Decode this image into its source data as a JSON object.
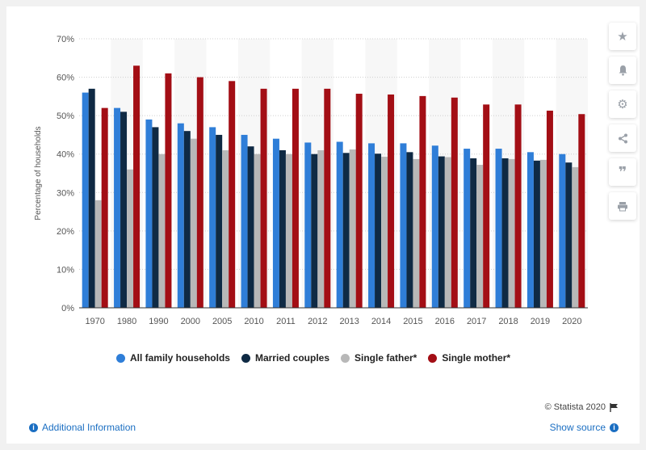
{
  "chart_data": {
    "type": "bar",
    "ylabel": "Percentage of households",
    "ylim": [
      0,
      70
    ],
    "yticks": [
      "0%",
      "10%",
      "20%",
      "30%",
      "40%",
      "50%",
      "60%",
      "70%"
    ],
    "categories": [
      "1970",
      "1980",
      "1990",
      "2000",
      "2005",
      "2010",
      "2011",
      "2012",
      "2013",
      "2014",
      "2015",
      "2016",
      "2017",
      "2018",
      "2019",
      "2020"
    ],
    "series": [
      {
        "name": "All family households",
        "color": "#2f7ed8",
        "values": [
          56,
          52,
          49,
          48,
          47,
          45,
          44,
          43,
          43.2,
          42.8,
          42.8,
          42.2,
          41.4,
          41.4,
          40.5,
          40
        ]
      },
      {
        "name": "Married couples",
        "color": "#0f2a44",
        "values": [
          57,
          51,
          47,
          46,
          45,
          42,
          41,
          40,
          40.3,
          40.1,
          40.5,
          39.4,
          38.9,
          38.9,
          38.3,
          37.8
        ]
      },
      {
        "name": "Single father*",
        "color": "#b8b8b8",
        "values": [
          28,
          36,
          40,
          44,
          41,
          40,
          40,
          41,
          41.2,
          39.3,
          38.7,
          39.2,
          37.2,
          38.7,
          38.5,
          36.6
        ]
      },
      {
        "name": "Single mother*",
        "color": "#a30e15",
        "values": [
          52,
          63,
          61,
          60,
          59,
          57,
          57,
          57,
          55.7,
          55.5,
          55.1,
          54.7,
          52.9,
          52.9,
          51.3,
          50.4
        ]
      }
    ],
    "grid": true,
    "legend": "bottom"
  },
  "footer": {
    "additional_info": "Additional Information",
    "copyright": "© Statista 2020",
    "show_source": "Show source"
  },
  "toolbar": {
    "icons": [
      "star-icon",
      "bell-icon",
      "gear-icon",
      "share-icon",
      "quote-icon",
      "print-icon"
    ]
  }
}
